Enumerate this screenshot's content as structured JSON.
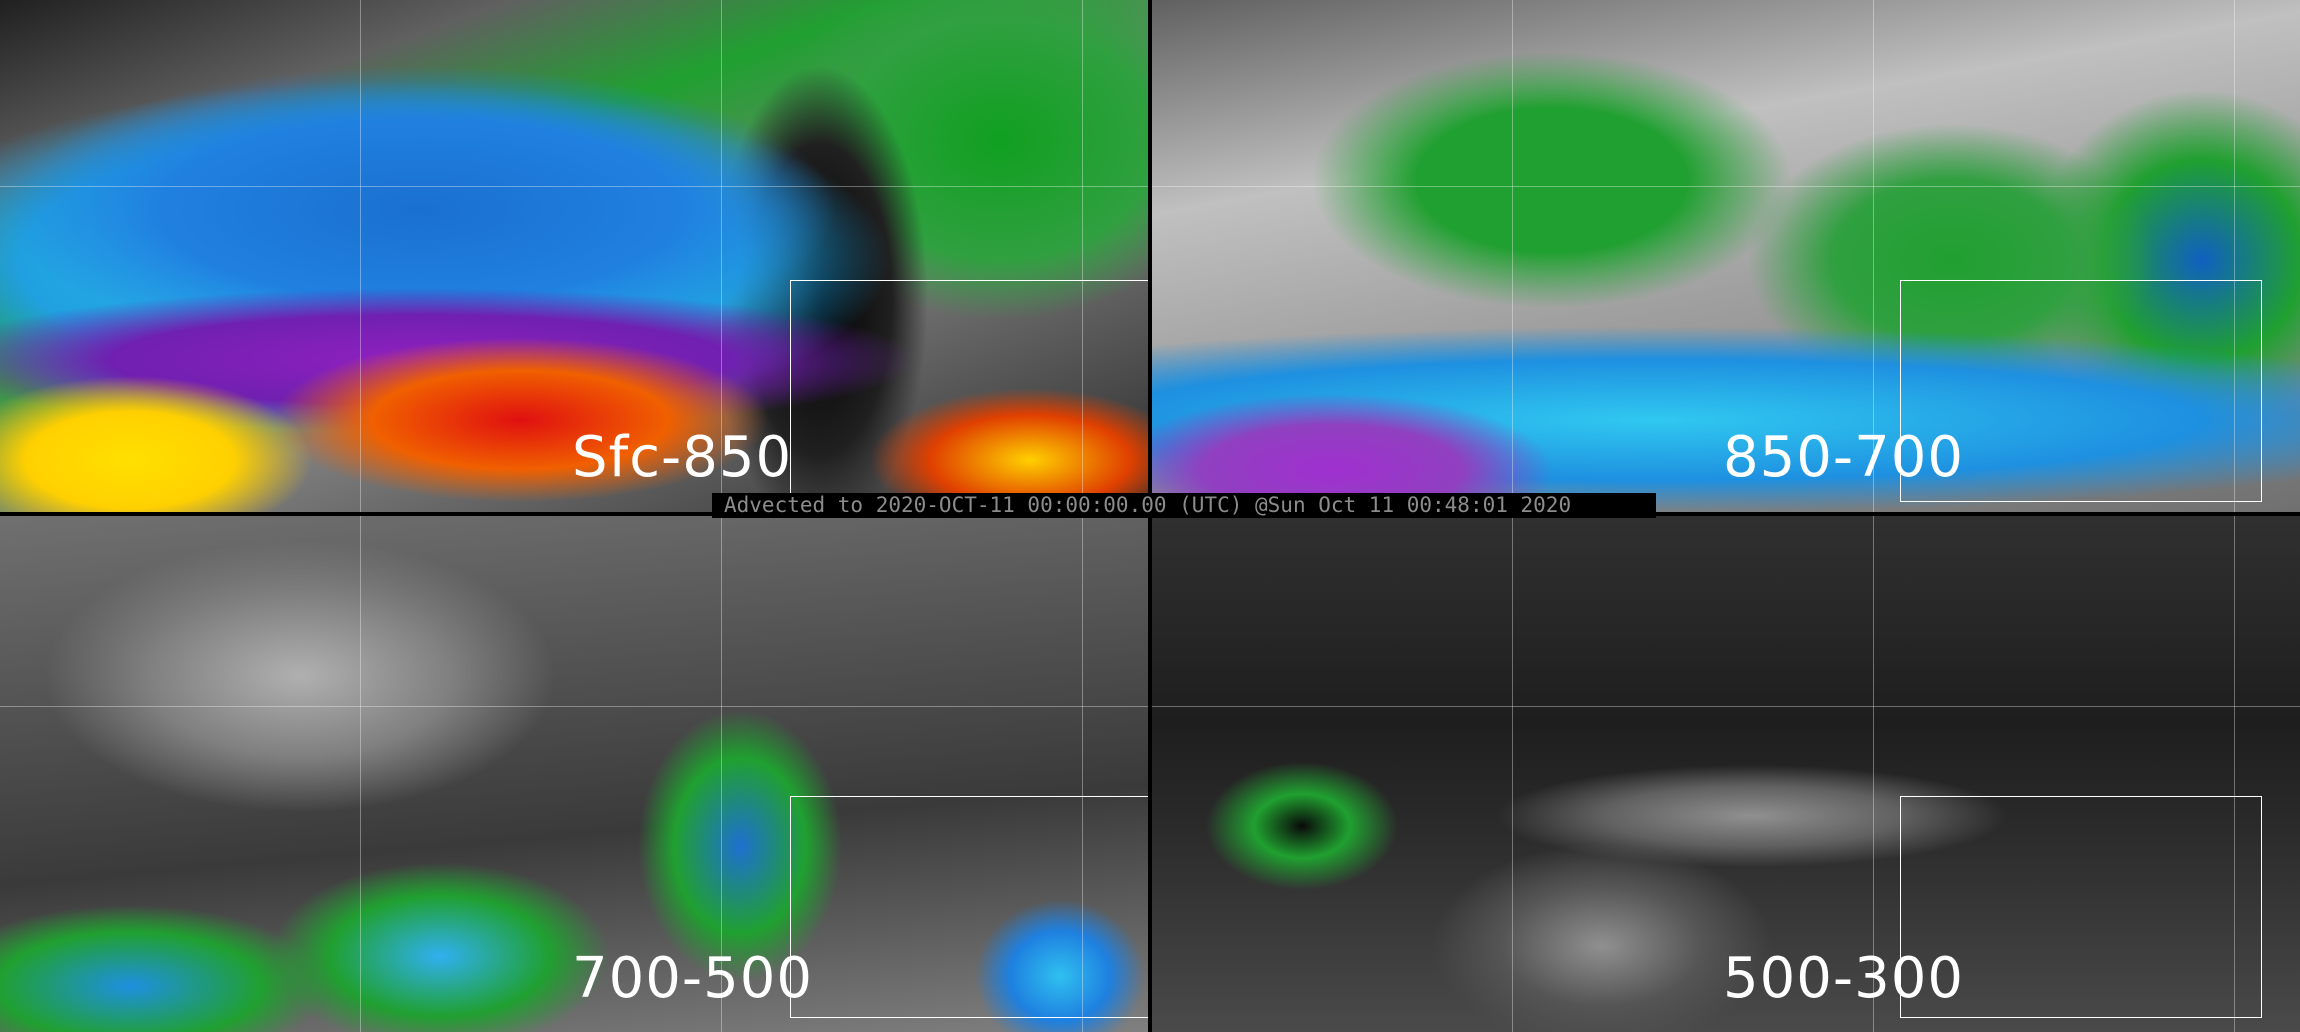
{
  "panels": [
    {
      "label": "Sfc-850"
    },
    {
      "label": "850-700"
    },
    {
      "label": "700-500"
    },
    {
      "label": "500-300"
    }
  ],
  "caption": "Advected to 2020-OCT-11 00:00:00.00 (UTC) @Sun Oct 11 00:48:01 2020"
}
